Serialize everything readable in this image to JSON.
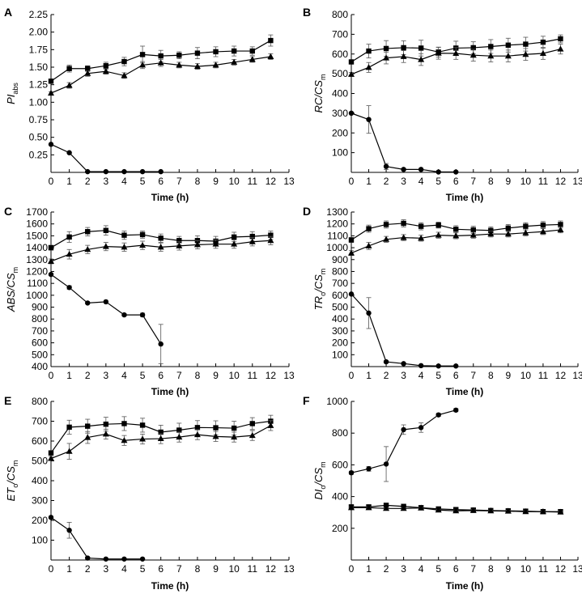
{
  "chart_data": [
    {
      "panel": "A",
      "type": "line",
      "ylabel": "PI",
      "ylabel_sub": "abs",
      "ylabel_italic": true,
      "ylabel_sub_italic": false,
      "xlabel": "Time (h)",
      "xlim": [
        0,
        13
      ],
      "ylim": [
        0,
        2.25
      ],
      "xticks": [
        0,
        1,
        2,
        3,
        4,
        5,
        6,
        7,
        8,
        9,
        10,
        11,
        12,
        13
      ],
      "yticks": [
        "0.25",
        "0.50",
        "0.75",
        "1.00",
        "1.25",
        "1.50",
        "1.75",
        "2.00",
        "2.25"
      ],
      "series": [
        {
          "marker": "square",
          "x": [
            0,
            1,
            2,
            3,
            4,
            5,
            6,
            7,
            8,
            9,
            10,
            11,
            12
          ],
          "y": [
            1.3,
            1.48,
            1.48,
            1.52,
            1.58,
            1.68,
            1.66,
            1.67,
            1.7,
            1.72,
            1.73,
            1.73,
            1.88
          ],
          "err": [
            0.02,
            0.05,
            0.04,
            0.05,
            0.06,
            0.12,
            0.08,
            0.05,
            0.08,
            0.07,
            0.07,
            0.06,
            0.08
          ]
        },
        {
          "marker": "triangle",
          "x": [
            0,
            1,
            2,
            3,
            4,
            5,
            6,
            7,
            8,
            9,
            10,
            11,
            12
          ],
          "y": [
            1.13,
            1.24,
            1.41,
            1.44,
            1.38,
            1.53,
            1.56,
            1.53,
            1.51,
            1.53,
            1.57,
            1.61,
            1.65
          ],
          "err": [
            0.02,
            0.04,
            0.04,
            0.04,
            0.04,
            0.05,
            0.05,
            0.04,
            0.04,
            0.04,
            0.04,
            0.04,
            0.04
          ]
        },
        {
          "marker": "circle",
          "x": [
            0,
            1,
            2,
            3,
            4,
            5,
            6
          ],
          "y": [
            0.4,
            0.28,
            0.01,
            0.01,
            0.01,
            0.01,
            0.01
          ],
          "err": [
            0,
            0.01,
            0,
            0,
            0,
            0,
            0
          ]
        }
      ]
    },
    {
      "panel": "B",
      "type": "line",
      "ylabel": "RC/CS",
      "ylabel_sub": "m",
      "ylabel_italic": true,
      "ylabel_sub_italic": false,
      "xlabel": "Time (h)",
      "xlim": [
        0,
        13
      ],
      "ylim": [
        0,
        800
      ],
      "xticks": [
        0,
        1,
        2,
        3,
        4,
        5,
        6,
        7,
        8,
        9,
        10,
        11,
        12,
        13
      ],
      "yticks": [
        "100",
        "200",
        "300",
        "400",
        "500",
        "600",
        "700",
        "800"
      ],
      "series": [
        {
          "marker": "square",
          "x": [
            0,
            1,
            2,
            3,
            4,
            5,
            6,
            7,
            8,
            9,
            10,
            11,
            12
          ],
          "y": [
            560,
            615,
            628,
            632,
            630,
            610,
            630,
            632,
            638,
            645,
            650,
            660,
            677
          ],
          "err": [
            10,
            35,
            40,
            35,
            40,
            25,
            35,
            30,
            35,
            35,
            35,
            30,
            20
          ]
        },
        {
          "marker": "triangle",
          "x": [
            0,
            1,
            2,
            3,
            4,
            5,
            6,
            7,
            8,
            9,
            10,
            11,
            12
          ],
          "y": [
            497,
            532,
            580,
            587,
            572,
            604,
            603,
            594,
            590,
            590,
            598,
            603,
            625
          ],
          "err": [
            10,
            25,
            30,
            30,
            30,
            30,
            30,
            30,
            30,
            30,
            30,
            30,
            25
          ]
        },
        {
          "marker": "circle",
          "x": [
            0,
            1,
            2,
            3,
            4,
            5,
            6
          ],
          "y": [
            300,
            268,
            30,
            15,
            15,
            2,
            2
          ],
          "err": [
            5,
            70,
            15,
            5,
            5,
            0,
            0
          ]
        }
      ]
    },
    {
      "panel": "C",
      "type": "line",
      "ylabel": "ABS/CS",
      "ylabel_sub": "m",
      "ylabel_italic": true,
      "ylabel_sub_italic": false,
      "xlabel": "Time (h)",
      "xlim": [
        0,
        13
      ],
      "ylim": [
        400,
        1700
      ],
      "xticks": [
        0,
        1,
        2,
        3,
        4,
        5,
        6,
        7,
        8,
        9,
        10,
        11,
        12,
        13
      ],
      "yticks": [
        "400",
        "500",
        "600",
        "700",
        "800",
        "900",
        "1000",
        "1100",
        "1200",
        "1300",
        "1400",
        "1500",
        "1600",
        "1700"
      ],
      "series": [
        {
          "marker": "square",
          "x": [
            0,
            1,
            2,
            3,
            4,
            5,
            6,
            7,
            8,
            9,
            10,
            11,
            12
          ],
          "y": [
            1400,
            1490,
            1535,
            1545,
            1505,
            1510,
            1480,
            1460,
            1460,
            1455,
            1490,
            1495,
            1505
          ],
          "err": [
            20,
            45,
            35,
            40,
            35,
            30,
            35,
            35,
            40,
            40,
            40,
            40,
            35
          ]
        },
        {
          "marker": "triangle",
          "x": [
            0,
            1,
            2,
            3,
            4,
            5,
            6,
            7,
            8,
            9,
            10,
            11,
            12
          ],
          "y": [
            1285,
            1345,
            1385,
            1410,
            1405,
            1420,
            1405,
            1415,
            1425,
            1430,
            1430,
            1450,
            1460
          ],
          "err": [
            20,
            40,
            35,
            35,
            35,
            35,
            35,
            35,
            35,
            35,
            35,
            35,
            35
          ]
        },
        {
          "marker": "circle",
          "x": [
            0,
            1,
            2,
            3,
            4,
            5,
            6
          ],
          "y": [
            1175,
            1065,
            935,
            945,
            835,
            835,
            590
          ],
          "err": [
            10,
            15,
            5,
            5,
            10,
            15,
            165
          ]
        }
      ]
    },
    {
      "panel": "D",
      "type": "line",
      "ylabel": "TR",
      "ylabel_sub": "o",
      "ylabel_suffix": "/CS",
      "ylabel_suffix_sub": "m",
      "ylabel_italic": true,
      "ylabel_sub_italic": false,
      "xlabel": "Time (h)",
      "xlim": [
        0,
        13
      ],
      "ylim": [
        0,
        1300
      ],
      "xticks": [
        0,
        1,
        2,
        3,
        4,
        5,
        6,
        7,
        8,
        9,
        10,
        11,
        12,
        13
      ],
      "yticks": [
        "100",
        "200",
        "300",
        "400",
        "500",
        "600",
        "700",
        "800",
        "900",
        "1000",
        "1100",
        "1200",
        "1300"
      ],
      "series": [
        {
          "marker": "square",
          "x": [
            0,
            1,
            2,
            3,
            4,
            5,
            6,
            7,
            8,
            9,
            10,
            11,
            12
          ],
          "y": [
            1065,
            1160,
            1195,
            1205,
            1180,
            1190,
            1155,
            1150,
            1145,
            1165,
            1180,
            1190,
            1195
          ],
          "err": [
            20,
            30,
            30,
            30,
            30,
            25,
            30,
            30,
            30,
            30,
            30,
            30,
            30
          ]
        },
        {
          "marker": "triangle",
          "x": [
            0,
            1,
            2,
            3,
            4,
            5,
            6,
            7,
            8,
            9,
            10,
            11,
            12
          ],
          "y": [
            955,
            1015,
            1070,
            1085,
            1080,
            1105,
            1100,
            1105,
            1115,
            1115,
            1125,
            1135,
            1150
          ],
          "err": [
            20,
            30,
            25,
            25,
            25,
            25,
            25,
            25,
            25,
            25,
            25,
            25,
            25
          ]
        },
        {
          "marker": "circle",
          "x": [
            0,
            1,
            2,
            3,
            4,
            5,
            6
          ],
          "y": [
            610,
            450,
            40,
            25,
            8,
            5,
            5
          ],
          "err": [
            5,
            130,
            10,
            5,
            0,
            0,
            0
          ]
        }
      ]
    },
    {
      "panel": "E",
      "type": "line",
      "ylabel": "ET",
      "ylabel_sub": "o",
      "ylabel_suffix": "/CS",
      "ylabel_suffix_sub": "m",
      "ylabel_italic": true,
      "ylabel_sub_italic": false,
      "xlabel": "Time (h)",
      "xlim": [
        0,
        13
      ],
      "ylim": [
        0,
        800
      ],
      "xticks": [
        0,
        1,
        2,
        3,
        4,
        5,
        6,
        7,
        8,
        9,
        10,
        11,
        12,
        13
      ],
      "yticks": [
        "100",
        "200",
        "300",
        "400",
        "500",
        "600",
        "700",
        "800"
      ],
      "series": [
        {
          "marker": "square",
          "x": [
            0,
            1,
            2,
            3,
            4,
            5,
            6,
            7,
            8,
            9,
            10,
            11,
            12
          ],
          "y": [
            540,
            670,
            675,
            685,
            688,
            680,
            645,
            655,
            668,
            667,
            665,
            688,
            700
          ],
          "err": [
            10,
            35,
            35,
            35,
            35,
            35,
            35,
            35,
            35,
            35,
            35,
            30,
            30
          ]
        },
        {
          "marker": "triangle",
          "x": [
            0,
            1,
            2,
            3,
            4,
            5,
            6,
            7,
            8,
            9,
            10,
            11,
            12
          ],
          "y": [
            512,
            548,
            618,
            635,
            603,
            610,
            612,
            620,
            632,
            623,
            620,
            628,
            678
          ],
          "err": [
            10,
            40,
            30,
            25,
            25,
            25,
            25,
            25,
            25,
            25,
            25,
            25,
            25
          ]
        },
        {
          "marker": "circle",
          "x": [
            0,
            1,
            2,
            3,
            4,
            5
          ],
          "y": [
            215,
            150,
            10,
            5,
            5,
            5
          ],
          "err": [
            5,
            40,
            5,
            0,
            0,
            0
          ]
        }
      ]
    },
    {
      "panel": "F",
      "type": "line",
      "ylabel": "DI",
      "ylabel_sub": "o",
      "ylabel_suffix": "/CS",
      "ylabel_suffix_sub": "m",
      "ylabel_italic": true,
      "ylabel_sub_italic": false,
      "xlabel": "Time (h)",
      "xlim": [
        0,
        13
      ],
      "ylim": [
        0,
        1000
      ],
      "xticks": [
        0,
        1,
        2,
        3,
        4,
        5,
        6,
        7,
        8,
        9,
        10,
        11,
        12,
        13
      ],
      "yticks": [
        "200",
        "400",
        "600",
        "800",
        "1000"
      ],
      "series": [
        {
          "marker": "square",
          "x": [
            0,
            1,
            2,
            3,
            4,
            5,
            6,
            7,
            8,
            9,
            10,
            11,
            12
          ],
          "y": [
            335,
            335,
            345,
            338,
            330,
            322,
            318,
            315,
            312,
            310,
            308,
            305,
            305
          ],
          "err": [
            5,
            5,
            5,
            5,
            5,
            5,
            5,
            5,
            5,
            5,
            5,
            5,
            5
          ]
        },
        {
          "marker": "triangle",
          "x": [
            0,
            1,
            2,
            3,
            4,
            5,
            6,
            7,
            8,
            9,
            10,
            11,
            12
          ],
          "y": [
            330,
            330,
            325,
            325,
            328,
            315,
            310,
            312,
            310,
            308,
            305,
            305,
            302
          ],
          "err": [
            5,
            5,
            5,
            5,
            5,
            5,
            5,
            5,
            5,
            5,
            5,
            5,
            5
          ]
        },
        {
          "marker": "circle",
          "x": [
            0,
            1,
            2,
            3,
            4,
            5,
            6
          ],
          "y": [
            550,
            575,
            605,
            822,
            835,
            915,
            945
          ],
          "err": [
            10,
            15,
            110,
            30,
            30,
            10,
            10
          ]
        }
      ]
    }
  ]
}
